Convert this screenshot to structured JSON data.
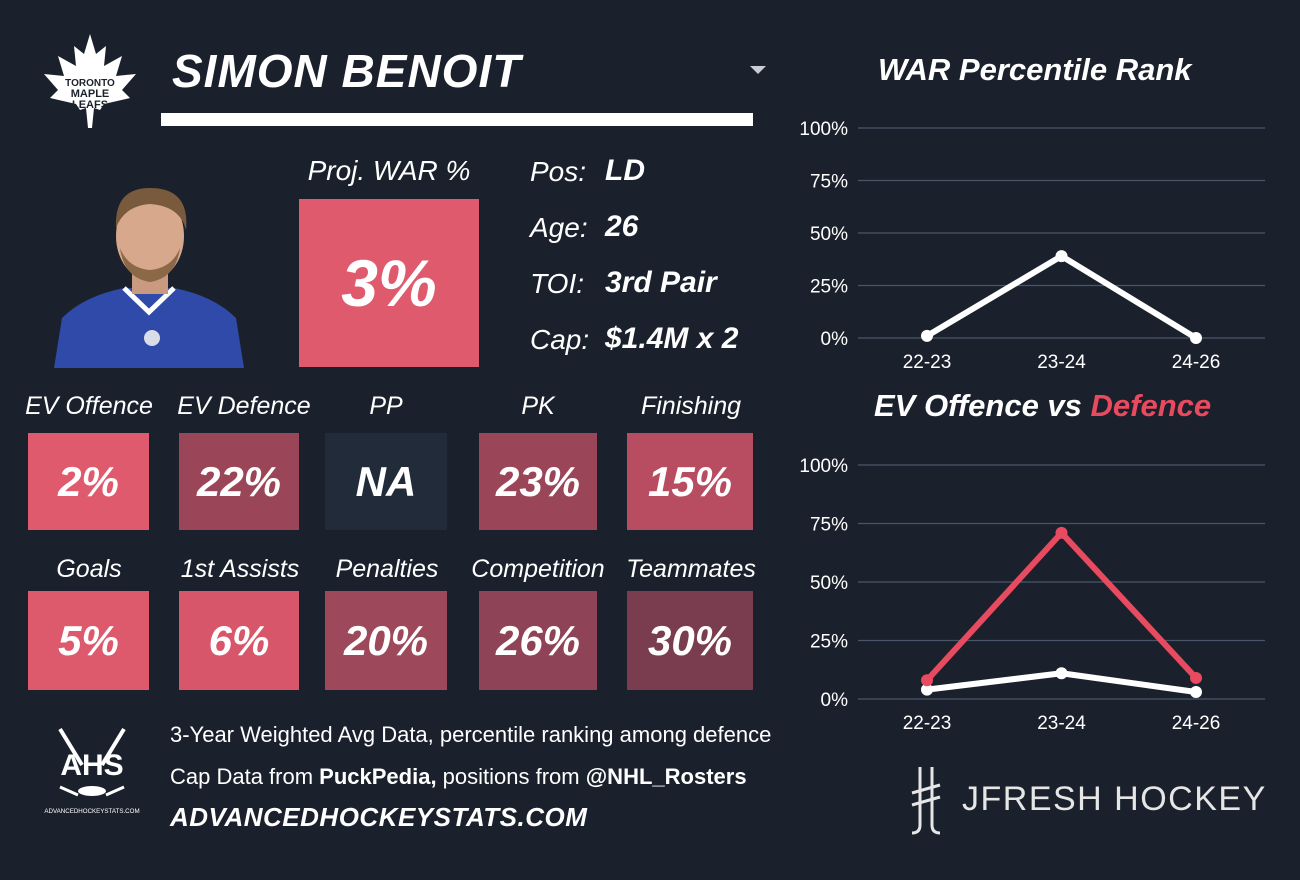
{
  "player": {
    "name": "SIMON BENOIT",
    "team_logo_text": [
      "TORONTO",
      "MAPLE",
      "LEAFS"
    ]
  },
  "proj_war": {
    "label": "Proj. WAR %",
    "value": "3%",
    "color": "#e05a6e"
  },
  "info": [
    {
      "label": "Pos:",
      "value": "LD"
    },
    {
      "label": "Age:",
      "value": "26"
    },
    {
      "label": "TOI:",
      "value": "3rd Pair"
    },
    {
      "label": "Cap:",
      "value": "$1.4M x 2"
    }
  ],
  "tiles_row1": [
    {
      "label": "EV Offence",
      "value": "2%",
      "color": "#e05a6e"
    },
    {
      "label": "EV Defence",
      "value": "22%",
      "color": "#9a4658"
    },
    {
      "label": "PP",
      "value": "NA",
      "color": "#212b39"
    },
    {
      "label": "PK",
      "value": "23%",
      "color": "#9a4658"
    },
    {
      "label": "Finishing",
      "value": "15%",
      "color": "#b84d62"
    }
  ],
  "tiles_row2": [
    {
      "label": "Goals",
      "value": "5%",
      "color": "#dd5a6d"
    },
    {
      "label": "1st Assists",
      "value": "6%",
      "color": "#d85669"
    },
    {
      "label": "Penalties",
      "value": "20%",
      "color": "#9e485b"
    },
    {
      "label": "Competition",
      "value": "26%",
      "color": "#8e4356"
    },
    {
      "label": "Teammates",
      "value": "30%",
      "color": "#7a3d4f"
    }
  ],
  "footer": {
    "line1": "3-Year Weighted Avg Data, percentile ranking among defence",
    "line2_prefix": "Cap Data from ",
    "line2_bold1": "PuckPedia,",
    "line2_mid": " positions from ",
    "line2_bold2": "@NHL_Rosters",
    "url": "ADVANCEDHOCKEYSTATS.COM",
    "ahs_logo_text": "AHS",
    "ahs_logo_subtext": "ADVANCEDHOCKEYSTATS.COM",
    "brand": "JFRESH HOCKEY"
  },
  "charts": {
    "war_title": "WAR Percentile Rank",
    "ev_title_part1": "EV Offence vs ",
    "ev_title_part2": "Defence",
    "ev_title_part2_color": "#e84a5f"
  },
  "chart_data": [
    {
      "type": "line",
      "title": "WAR Percentile Rank",
      "categories": [
        "22-23",
        "23-24",
        "24-26"
      ],
      "series": [
        {
          "values": [
            1,
            39,
            0
          ],
          "color": "#ffffff"
        }
      ],
      "ylim": [
        0,
        100
      ],
      "yticks": [
        "0%",
        "25%",
        "50%",
        "75%",
        "100%"
      ],
      "grid": true
    },
    {
      "type": "line",
      "title": "EV Offence vs Defence",
      "categories": [
        "22-23",
        "23-24",
        "24-26"
      ],
      "series": [
        {
          "name": "Offence",
          "values": [
            4,
            11,
            3
          ],
          "color": "#ffffff"
        },
        {
          "name": "Defence",
          "values": [
            8,
            71,
            9
          ],
          "color": "#e84a5f"
        }
      ],
      "ylim": [
        0,
        100
      ],
      "yticks": [
        "0%",
        "25%",
        "50%",
        "75%",
        "100%"
      ],
      "grid": true
    }
  ]
}
